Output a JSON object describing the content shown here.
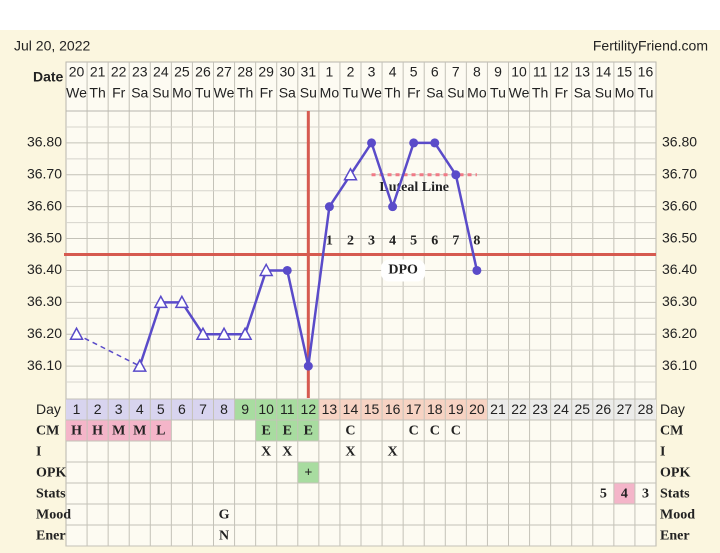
{
  "header": {
    "date": "Jul 20, 2022",
    "site": "FertilityFriend.com"
  },
  "chart_data": {
    "type": "line",
    "x_label": "Date",
    "categories": [
      "20",
      "21",
      "22",
      "23",
      "24",
      "25",
      "26",
      "27",
      "28",
      "29",
      "30",
      "31",
      "1",
      "2",
      "3",
      "4",
      "5",
      "6",
      "7",
      "8",
      "9",
      "10",
      "11",
      "12",
      "13",
      "14",
      "15",
      "16"
    ],
    "weekdays": [
      "We",
      "Th",
      "Fr",
      "Sa",
      "Su",
      "Mo",
      "Tu",
      "We",
      "Th",
      "Fr",
      "Sa",
      "Su",
      "Mo",
      "Tu",
      "We",
      "Th",
      "Fr",
      "Sa",
      "Su",
      "Mo",
      "Tu",
      "We",
      "Th",
      "Fr",
      "Sa",
      "Su",
      "Mo",
      "Tu"
    ],
    "series": [
      {
        "color": "#5a4bc9",
        "values": [
          36.2,
          null,
          null,
          36.1,
          36.3,
          36.3,
          36.2,
          36.2,
          36.2,
          36.4,
          36.4,
          36.1,
          36.6,
          36.7,
          36.8,
          36.6,
          36.8,
          36.8,
          36.7,
          36.4,
          null,
          null,
          null,
          null,
          null,
          null,
          null,
          null
        ],
        "markers": [
          "triangle",
          null,
          null,
          "triangle",
          "triangle",
          "triangle",
          "triangle",
          "triangle",
          "triangle",
          "triangle",
          "circle",
          "circle",
          "circle",
          "triangle",
          "circle",
          "circle",
          "circle",
          "circle",
          "circle",
          "circle",
          null,
          null,
          null,
          null,
          null,
          null,
          null,
          null
        ]
      }
    ],
    "ylim": [
      36.0,
      36.9
    ],
    "yticks": [
      {
        "value": 36.1,
        "label": "36.10"
      },
      {
        "value": 36.2,
        "label": "36.20"
      },
      {
        "value": 36.3,
        "label": "36.30"
      },
      {
        "value": 36.4,
        "label": "36.40"
      },
      {
        "value": 36.5,
        "label": "36.50"
      },
      {
        "value": 36.6,
        "label": "36.60"
      },
      {
        "value": 36.7,
        "label": "36.70"
      },
      {
        "value": 36.8,
        "label": "36.80"
      }
    ],
    "minor_yticks": [
      36.05,
      36.15,
      36.25,
      36.35,
      36.45,
      36.55,
      36.65,
      36.75,
      36.85
    ],
    "grid": true,
    "coverline": 36.45,
    "coverline_color": "#d65a50",
    "ovulation_day": 12,
    "dpo": {
      "label": "DPO",
      "numbers": [
        1,
        2,
        3,
        4,
        5,
        6,
        7,
        8
      ]
    },
    "luteal_line": {
      "label": "Luteal Line",
      "value": 36.7,
      "from": 15,
      "to": 20,
      "color": "#f07a86"
    }
  },
  "table": {
    "rows": [
      {
        "label": "Day",
        "cells": [
          1,
          2,
          3,
          4,
          5,
          6,
          7,
          8,
          9,
          10,
          11,
          12,
          13,
          14,
          15,
          16,
          17,
          18,
          19,
          20,
          21,
          22,
          23,
          24,
          25,
          26,
          27,
          28
        ],
        "fills": [
          "#d8d4ef",
          "#d8d4ef",
          "#d8d4ef",
          "#d8d4ef",
          "#d8d4ef",
          "#d8d4ef",
          "#d8d4ef",
          "#d8d4ef",
          "#a8dca0",
          "#a8dca0",
          "#a8dca0",
          "#a8dca0",
          "#f7d3c3",
          "#f7d3c3",
          "#f7d3c3",
          "#f7d3c3",
          "#f7d3c3",
          "#f7d3c3",
          "#f7d3c3",
          "#f7d3c3",
          "#ececea",
          "#ececea",
          "#ececea",
          "#ececea",
          "#ececea",
          "#ececea",
          "#ececea",
          "#ececea"
        ]
      },
      {
        "label": "CM",
        "cells": [
          "H",
          "H",
          "M",
          "M",
          "L",
          null,
          null,
          null,
          null,
          "E",
          "E",
          "E",
          null,
          "C",
          null,
          null,
          "C",
          "C",
          "C",
          null,
          null,
          null,
          null,
          null,
          null,
          null,
          null,
          null
        ],
        "fills": [
          "#f4b5c9",
          "#f4b5c9",
          "#f4b5c9",
          "#f4b5c9",
          "#f4b5c9",
          null,
          null,
          null,
          null,
          "#a8dca0",
          "#a8dca0",
          "#a8dca0",
          null,
          null,
          null,
          null,
          null,
          null,
          null,
          null,
          null,
          null,
          null,
          null,
          null,
          null,
          null,
          null
        ]
      },
      {
        "label": "I",
        "cells": [
          null,
          null,
          null,
          null,
          null,
          null,
          null,
          null,
          null,
          "X",
          "X",
          null,
          null,
          "X",
          null,
          "X",
          null,
          null,
          null,
          null,
          null,
          null,
          null,
          null,
          null,
          null,
          null,
          null
        ]
      },
      {
        "label": "OPK",
        "cells": [
          null,
          null,
          null,
          null,
          null,
          null,
          null,
          null,
          null,
          null,
          null,
          "+",
          null,
          null,
          null,
          null,
          null,
          null,
          null,
          null,
          null,
          null,
          null,
          null,
          null,
          null,
          null,
          null
        ],
        "fills": [
          null,
          null,
          null,
          null,
          null,
          null,
          null,
          null,
          null,
          null,
          null,
          "#a8dca0",
          null,
          null,
          null,
          null,
          null,
          null,
          null,
          null,
          null,
          null,
          null,
          null,
          null,
          null,
          null,
          null
        ]
      },
      {
        "label": "Stats",
        "cells": [
          null,
          null,
          null,
          null,
          null,
          null,
          null,
          null,
          null,
          null,
          null,
          null,
          null,
          null,
          null,
          null,
          null,
          null,
          null,
          null,
          null,
          null,
          null,
          null,
          null,
          5,
          4,
          3
        ],
        "fills": [
          null,
          null,
          null,
          null,
          null,
          null,
          null,
          null,
          null,
          null,
          null,
          null,
          null,
          null,
          null,
          null,
          null,
          null,
          null,
          null,
          null,
          null,
          null,
          null,
          null,
          null,
          "#f4b5c9",
          null
        ]
      },
      {
        "label": "Mood",
        "cells": [
          null,
          null,
          null,
          null,
          null,
          null,
          null,
          "G",
          null,
          null,
          null,
          null,
          null,
          null,
          null,
          null,
          null,
          null,
          null,
          null,
          null,
          null,
          null,
          null,
          null,
          null,
          null,
          null
        ]
      },
      {
        "label": "Ener",
        "cells": [
          null,
          null,
          null,
          null,
          null,
          null,
          null,
          "N",
          null,
          null,
          null,
          null,
          null,
          null,
          null,
          null,
          null,
          null,
          null,
          null,
          null,
          null,
          null,
          null,
          null,
          null,
          null,
          null
        ]
      }
    ]
  }
}
